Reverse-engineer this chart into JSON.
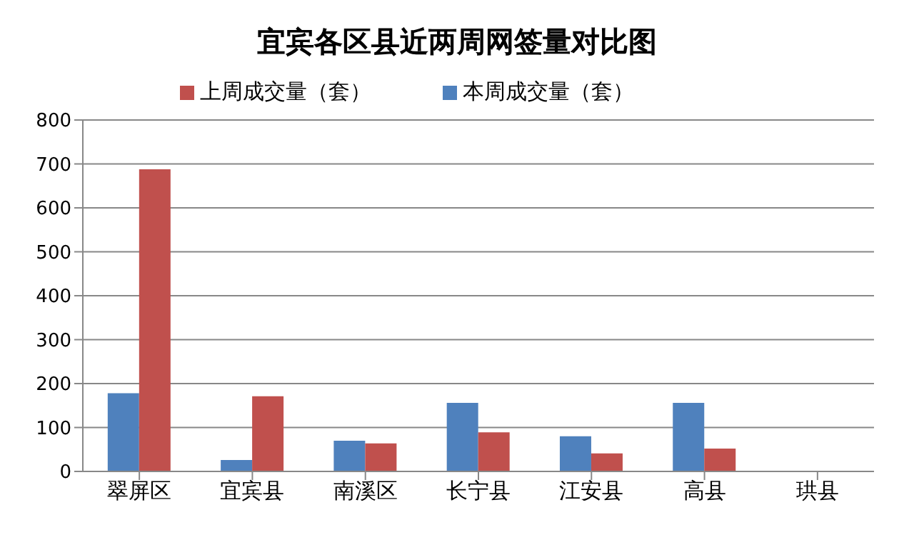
{
  "chart_data": {
    "type": "bar",
    "title": "宜宾各区县近两周网签量对比图",
    "categories": [
      "翠屏区",
      "宜宾县",
      "南溪区",
      "长宁县",
      "江安县",
      "高县",
      "珙县"
    ],
    "series": [
      {
        "name": "本周成交量（套）",
        "color": "#4f81bd",
        "values": [
          178,
          26,
          70,
          156,
          80,
          156,
          null
        ]
      },
      {
        "name": "上周成交量（套）",
        "color": "#c0504d",
        "values": [
          688,
          171,
          64,
          89,
          41,
          52,
          null
        ]
      }
    ],
    "ylim": [
      0,
      800
    ],
    "yticks": [
      0,
      100,
      200,
      300,
      400,
      500,
      600,
      700,
      800
    ],
    "grid": "y",
    "legend": "top"
  }
}
